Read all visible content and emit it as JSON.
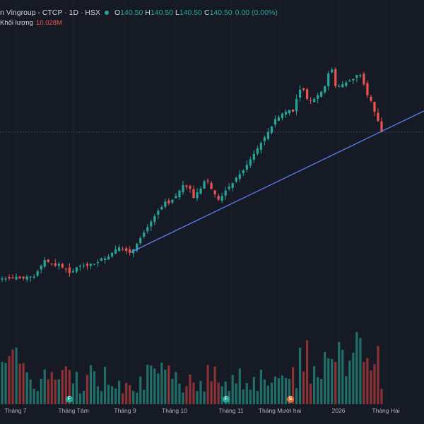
{
  "legend": {
    "symbol": "n Vingroup - CTCP · 1D · HSX",
    "o_label": "O",
    "o_value": "140.50",
    "h_label": "H",
    "h_value": "140.50",
    "l_label": "L",
    "l_value": "140.50",
    "c_label": "C",
    "c_value": "140.50",
    "change": "0.00 (0.00%)"
  },
  "volume_legend": {
    "label": "Khối lượng",
    "value": "10.028M"
  },
  "x_axis": [
    "Tháng 7",
    "Tháng Tám",
    "Tháng 9",
    "Tháng 10",
    "Tháng 11",
    "Tháng Mười hai",
    "2026",
    "Tháng Hai"
  ],
  "badges": [
    {
      "letter": "F",
      "type": "f"
    },
    {
      "letter": "F",
      "type": "f"
    },
    {
      "letter": "S",
      "type": "s"
    }
  ],
  "colors": {
    "up": "#26a69a",
    "down": "#ef5350",
    "trendline": "#5b7cf0",
    "background": "#161a25"
  },
  "chart_data": {
    "type": "candlestick",
    "series_close": [
      60,
      60,
      60,
      60,
      61,
      60,
      60,
      61,
      61,
      61,
      64,
      67,
      70,
      69,
      68,
      67,
      68,
      66,
      65,
      63,
      64,
      66,
      67,
      67,
      67,
      68,
      68,
      69,
      71,
      71,
      72,
      74,
      76,
      77,
      76,
      75,
      74,
      76,
      79,
      82,
      85,
      88,
      91,
      94,
      97,
      99,
      102,
      101,
      103,
      105,
      108,
      111,
      110,
      109,
      104,
      107,
      109,
      113,
      113,
      109,
      106,
      103,
      105,
      108,
      110,
      112,
      115,
      117,
      119,
      122,
      125,
      128,
      131,
      134,
      137,
      140,
      143,
      147,
      148,
      150,
      151,
      152,
      151,
      158,
      163,
      163,
      158,
      157,
      158,
      160,
      162,
      165,
      172,
      174,
      165,
      165,
      166,
      167,
      168,
      169,
      171,
      171,
      166,
      160,
      157,
      151,
      146,
      140
    ],
    "series_note": "daily closes, approximate price units"
  }
}
